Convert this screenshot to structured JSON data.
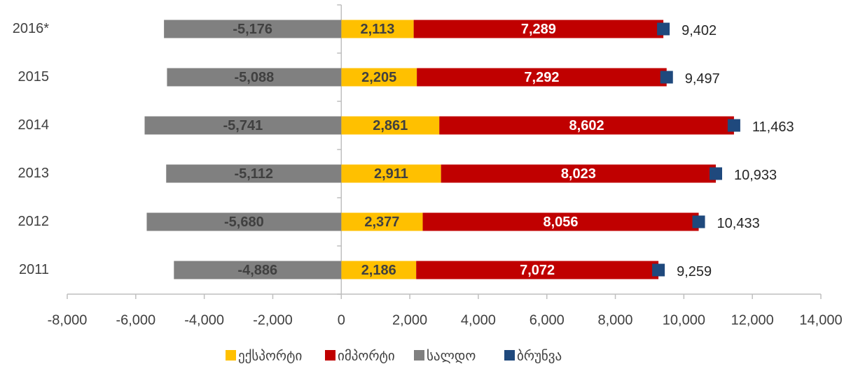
{
  "chart_data": {
    "type": "bar",
    "orientation": "horizontal",
    "categories": [
      "2016*",
      "2015",
      "2014",
      "2013",
      "2012",
      "2011"
    ],
    "series": [
      {
        "name": "ექსპორტი",
        "color": "#ffc000",
        "type": "bar",
        "values": [
          2113,
          2205,
          2861,
          2911,
          2377,
          2186
        ],
        "value_labels": [
          "2,113",
          "2,205",
          "2,861",
          "2,911",
          "2,377",
          "2,186"
        ]
      },
      {
        "name": "იმპორტი",
        "color": "#c00000",
        "type": "bar",
        "values": [
          7289,
          7292,
          8602,
          8023,
          8056,
          7072
        ],
        "value_labels": [
          "7,289",
          "7,292",
          "8,602",
          "8,023",
          "8,056",
          "7,072"
        ]
      },
      {
        "name": "სალდო",
        "color": "#808080",
        "type": "bar",
        "values": [
          -5176,
          -5088,
          -5741,
          -5112,
          -5680,
          -4886
        ],
        "value_labels": [
          "-5,176",
          "-5,088",
          "-5,741",
          "-5,112",
          "-5,680",
          "-4,886"
        ]
      },
      {
        "name": "ბრუნვა",
        "color": "#1f497d",
        "type": "scatter",
        "values": [
          9402,
          9497,
          11463,
          10933,
          10433,
          9259
        ],
        "value_labels": [
          "9,402",
          "9,497",
          "11,463",
          "10,933",
          "10,433",
          "9,259"
        ]
      }
    ],
    "xlim": [
      -8000,
      14000
    ],
    "xticks": [
      {
        "value": -8000,
        "label": "-8,000"
      },
      {
        "value": -6000,
        "label": "-6,000"
      },
      {
        "value": -4000,
        "label": "-4,000"
      },
      {
        "value": -2000,
        "label": "-2,000"
      },
      0,
      {
        "value": 2000,
        "label": "2,000"
      },
      {
        "value": 4000,
        "label": "4,000"
      },
      {
        "value": 6000,
        "label": "6,000"
      },
      {
        "value": 8000,
        "label": "8,000"
      },
      {
        "value": 10000,
        "label": "10,000"
      },
      {
        "value": 12000,
        "label": "12,000"
      },
      {
        "value": 14000,
        "label": "14,000"
      }
    ],
    "legend": "bottom"
  }
}
